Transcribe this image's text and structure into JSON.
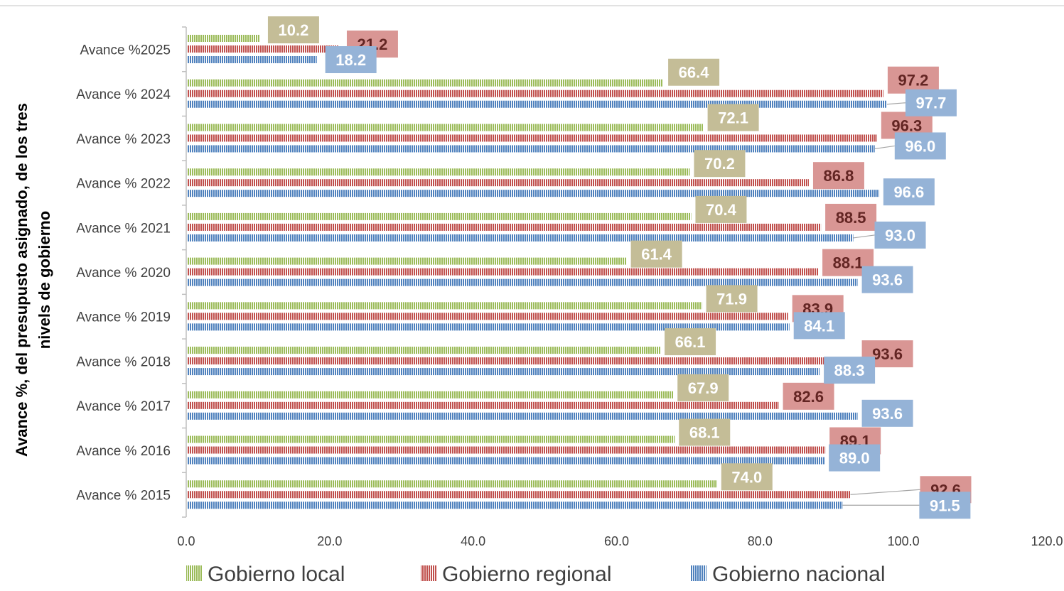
{
  "chart_data": {
    "type": "bar",
    "orientation": "horizontal",
    "title": "",
    "xlabel": "",
    "ylabel": "Avance %, del presupusto asignado, de los tres nivels de gobierno",
    "ylabel_lines": [
      "Avance %, del presupusto asignado, de los tres",
      "nivels de gobierno"
    ],
    "xlim": [
      0,
      120
    ],
    "xticks": [
      "0.0",
      "20.0",
      "40.0",
      "60.0",
      "80.0",
      "100.0",
      "120.0"
    ],
    "grid": false,
    "legend_position": "bottom",
    "categories": [
      "Avance %2025",
      "Avance % 2024",
      "Avance % 2023",
      "Avance % 2022",
      "Avance % 2021",
      "Avance % 2020",
      "Avance % 2019",
      "Avance % 2018",
      "Avance % 2017",
      "Avance % 2016",
      "Avance % 2015"
    ],
    "series": [
      {
        "name": "Gobierno local",
        "color": "#9BBB59",
        "label_bg": "#C4BD97",
        "label_text": "#FFFFFF",
        "values": [
          10.2,
          66.4,
          72.1,
          70.2,
          70.4,
          61.4,
          71.9,
          66.1,
          67.9,
          68.1,
          74.0
        ],
        "labels": [
          "10.2",
          "66.4",
          "72.1",
          "70.2",
          "70.4",
          "61.4",
          "71.9",
          "66.1",
          "67.9",
          "68.1",
          "74.0"
        ]
      },
      {
        "name": "Gobierno regional",
        "color": "#C0504D",
        "label_bg": "#D99694",
        "label_text": "#632523",
        "values": [
          21.2,
          97.2,
          96.3,
          86.8,
          88.5,
          88.1,
          83.9,
          93.6,
          82.6,
          89.1,
          92.6
        ],
        "labels": [
          "21.2",
          "97.2",
          "96.3",
          "86.8",
          "88.5",
          "88.1",
          "83.9",
          "93.6",
          "82.6",
          "89.1",
          "92.6"
        ]
      },
      {
        "name": "Gobierno nacional",
        "color": "#4F81BD",
        "label_bg": "#95B3D7",
        "label_text": "#FFFFFF",
        "values": [
          18.2,
          97.7,
          96.0,
          96.6,
          93.0,
          93.6,
          84.1,
          88.3,
          93.6,
          89.0,
          91.5
        ],
        "labels": [
          "18.2",
          "97.7",
          "96.0",
          "96.6",
          "93.0",
          "93.6",
          "84.1",
          "88.3",
          "93.6",
          "89.0",
          "91.5"
        ]
      }
    ]
  }
}
